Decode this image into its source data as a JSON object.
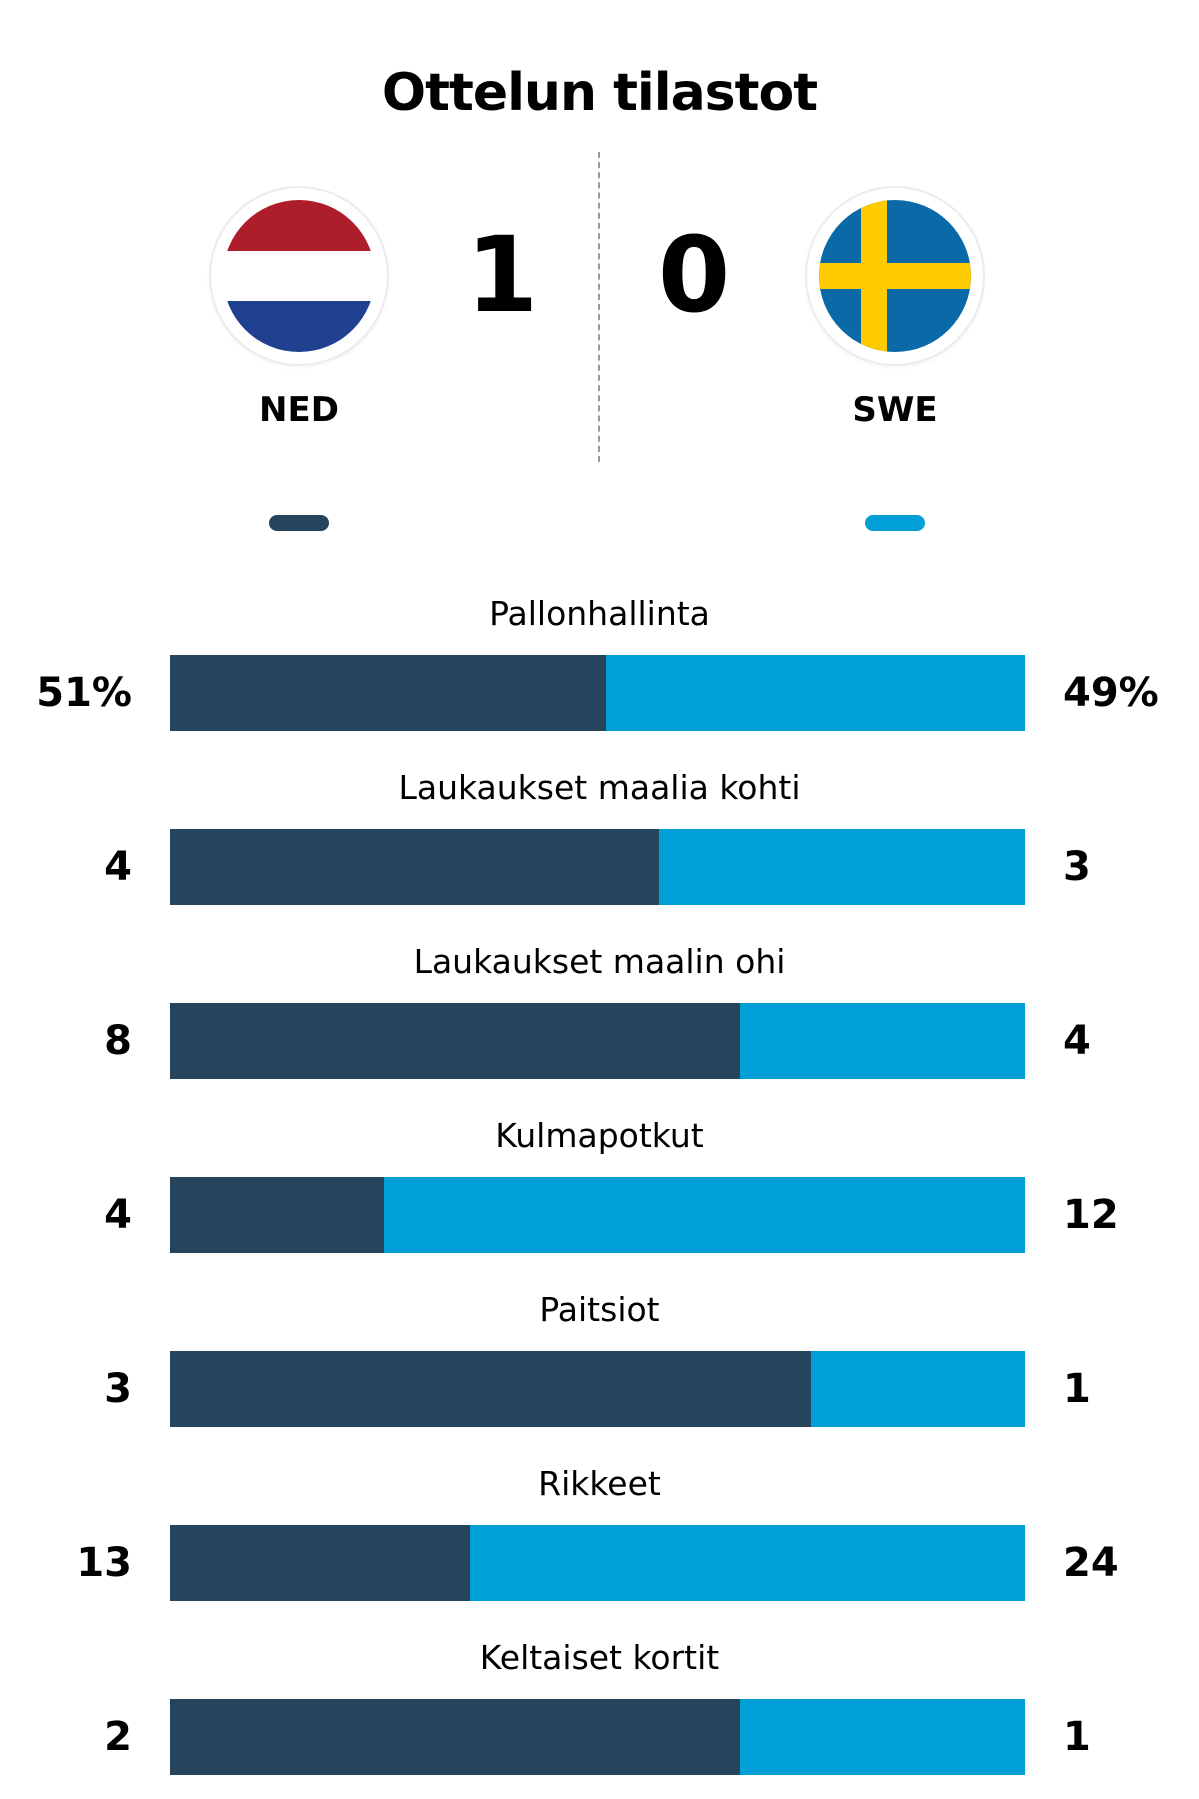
{
  "title": "Ottelun tilastot",
  "colors": {
    "home": "#26445b",
    "away": "#00a0d6"
  },
  "home": {
    "abbr": "NED",
    "score": "1",
    "flag_icon": "netherlands-flag-icon"
  },
  "away": {
    "abbr": "SWE",
    "score": "0",
    "flag_icon": "sweden-flag-icon"
  },
  "chart_data": {
    "type": "bar",
    "orientation": "horizontal-stacked-100",
    "title": "Ottelun tilastot",
    "series": [
      {
        "name": "NED",
        "color": "#26445b"
      },
      {
        "name": "SWE",
        "color": "#00a0d6"
      }
    ],
    "stats": [
      {
        "label": "Pallonhallinta",
        "home": 51,
        "away": 49,
        "home_display": "51%",
        "away_display": "49%"
      },
      {
        "label": "Laukaukset maalia kohti",
        "home": 4,
        "away": 3,
        "home_display": "4",
        "away_display": "3"
      },
      {
        "label": "Laukaukset maalin ohi",
        "home": 8,
        "away": 4,
        "home_display": "8",
        "away_display": "4"
      },
      {
        "label": "Kulmapotkut",
        "home": 4,
        "away": 12,
        "home_display": "4",
        "away_display": "12"
      },
      {
        "label": "Paitsiot",
        "home": 3,
        "away": 1,
        "home_display": "3",
        "away_display": "1"
      },
      {
        "label": "Rikkeet",
        "home": 13,
        "away": 24,
        "home_display": "13",
        "away_display": "24"
      },
      {
        "label": "Keltaiset kortit",
        "home": 2,
        "away": 1,
        "home_display": "2",
        "away_display": "1"
      }
    ]
  }
}
